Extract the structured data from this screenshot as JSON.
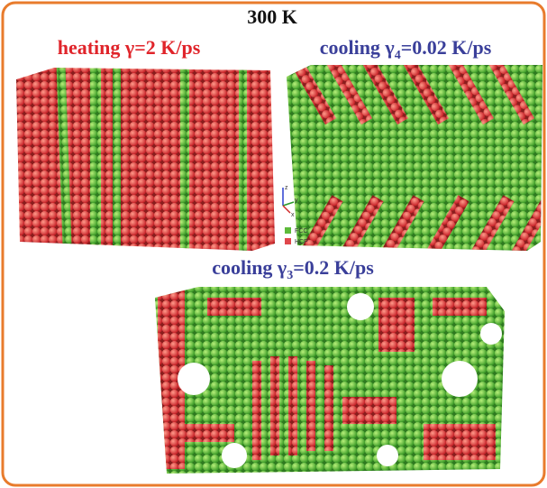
{
  "title": "300 K",
  "panels": [
    {
      "label": {
        "prefix": "heating γ=2 K/ps"
      }
    },
    {
      "label": {
        "prefix": "cooling γ",
        "subscript": "4",
        "suffix": "=0.02 K/ps"
      }
    },
    {
      "label": {
        "prefix": "cooling γ",
        "subscript": "3",
        "suffix": "=0.2 K/ps"
      }
    }
  ],
  "axes": {
    "z": "z",
    "y": "y",
    "x": "x"
  },
  "legend": [
    {
      "name": "FCC"
    },
    {
      "name": "HCP"
    }
  ]
}
